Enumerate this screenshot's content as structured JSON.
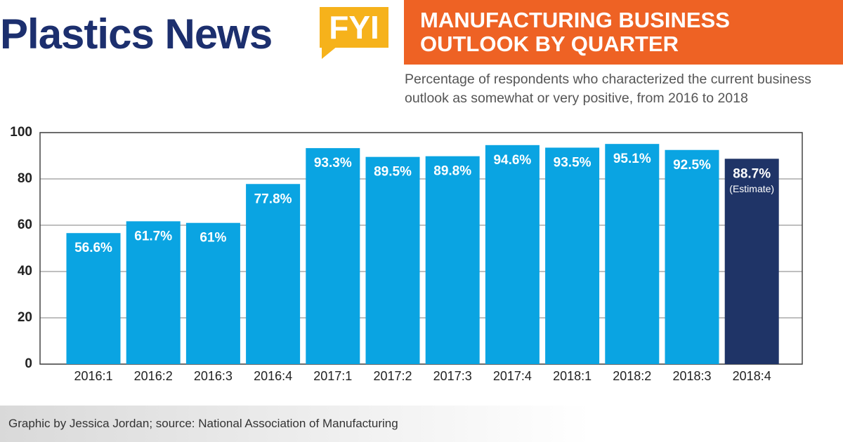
{
  "brand": "Plastics News",
  "badge": "FYI",
  "chart_data": {
    "type": "bar",
    "title": "MANUFACTURING BUSINESS OUTLOOK BY QUARTER",
    "subtitle": "Percentage of respondents who characterized the current business outlook as somewhat or very positive, from 2016 to 2018",
    "categories": [
      "2016:1",
      "2016:2",
      "2016:3",
      "2016:4",
      "2017:1",
      "2017:2",
      "2017:3",
      "2017:4",
      "2018:1",
      "2018:2",
      "2018:3",
      "2018:4"
    ],
    "values": [
      56.6,
      61.7,
      61,
      77.8,
      93.3,
      89.5,
      89.8,
      94.6,
      93.5,
      95.1,
      92.5,
      88.7
    ],
    "value_labels": [
      "56.6%",
      "61.7%",
      "61%",
      "77.8%",
      "93.3%",
      "89.5%",
      "89.8%",
      "94.6%",
      "93.5%",
      "95.1%",
      "92.5%",
      "88.7%"
    ],
    "value_notes": [
      null,
      null,
      null,
      null,
      null,
      null,
      null,
      null,
      null,
      null,
      null,
      "(Estimate)"
    ],
    "colors": [
      "#0aa4e2",
      "#0aa4e2",
      "#0aa4e2",
      "#0aa4e2",
      "#0aa4e2",
      "#0aa4e2",
      "#0aa4e2",
      "#0aa4e2",
      "#0aa4e2",
      "#0aa4e2",
      "#0aa4e2",
      "#1f3467"
    ],
    "ylim": [
      0,
      100
    ],
    "yticks": [
      0,
      20,
      40,
      60,
      80,
      100
    ],
    "grid": true
  },
  "footer": "Graphic by Jessica Jordan; source: National Association of Manufacturing"
}
